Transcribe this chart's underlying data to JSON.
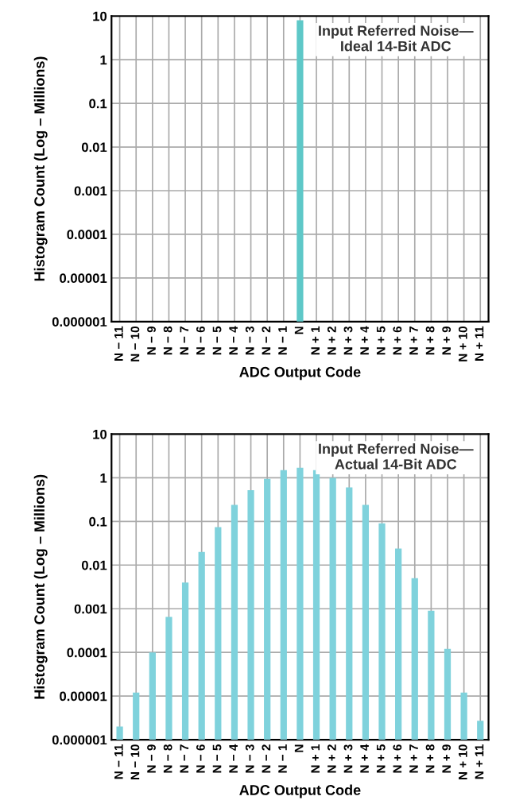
{
  "chart_data": [
    {
      "type": "bar",
      "title": "Input Referred Noise—\nIdeal 14-Bit ADC",
      "xlabel": "ADC Output Code",
      "ylabel": "Histogram Count (Log – Millions)",
      "categories": [
        "N − 11",
        "N − 10",
        "N − 9",
        "N − 8",
        "N − 7",
        "N − 6",
        "N − 5",
        "N − 4",
        "N − 3",
        "N − 2",
        "N − 1",
        "N",
        "N + 1",
        "N + 2",
        "N + 3",
        "N + 4",
        "N + 5",
        "N + 6",
        "N + 7",
        "N + 8",
        "N + 9",
        "N + 10",
        "N + 11"
      ],
      "values": [
        null,
        null,
        null,
        null,
        null,
        null,
        null,
        null,
        null,
        null,
        null,
        8,
        null,
        null,
        null,
        null,
        null,
        null,
        null,
        null,
        null,
        null,
        null
      ],
      "color": "#5ec8c8",
      "log": true,
      "ylim": [
        1e-06,
        10
      ],
      "yticks": [
        {
          "value": 1e-06,
          "label": "0.000001"
        },
        {
          "value": 1e-05,
          "label": "0.00001"
        },
        {
          "value": 0.0001,
          "label": "0.0001"
        },
        {
          "value": 0.001,
          "label": "0.001"
        },
        {
          "value": 0.01,
          "label": "0.01"
        },
        {
          "value": 0.1,
          "label": "0.1"
        },
        {
          "value": 1,
          "label": "1"
        },
        {
          "value": 10,
          "label": "10"
        }
      ],
      "grid": true
    },
    {
      "type": "bar",
      "title": "Input Referred Noise—\nActual 14-Bit ADC",
      "xlabel": "ADC Output Code",
      "ylabel": "Histogram Count (Log – Millions)",
      "categories": [
        "N − 11",
        "N − 10",
        "N − 9",
        "N − 8",
        "N − 7",
        "N − 6",
        "N − 5",
        "N − 4",
        "N − 3",
        "N − 2",
        "N − 1",
        "N",
        "N + 1",
        "N + 2",
        "N + 3",
        "N + 4",
        "N + 5",
        "N + 6",
        "N + 7",
        "N + 8",
        "N + 9",
        "N + 10",
        "N + 11"
      ],
      "values": [
        2e-06,
        1.2e-05,
        0.0001,
        0.00065,
        0.004,
        0.02,
        0.074,
        0.24,
        0.52,
        0.95,
        1.5,
        1.7,
        1.5,
        1.0,
        0.6,
        0.24,
        0.09,
        0.024,
        0.005,
        0.0009,
        0.00012,
        1.2e-05,
        2.7e-06
      ],
      "color": "#7fd2dc",
      "log": true,
      "ylim": [
        1e-06,
        10
      ],
      "yticks": [
        {
          "value": 1e-06,
          "label": "0.000001"
        },
        {
          "value": 1e-05,
          "label": "0.00001"
        },
        {
          "value": 0.0001,
          "label": "0.0001"
        },
        {
          "value": 0.001,
          "label": "0.001"
        },
        {
          "value": 0.01,
          "label": "0.01"
        },
        {
          "value": 0.1,
          "label": "0.1"
        },
        {
          "value": 1,
          "label": "1"
        },
        {
          "value": 10,
          "label": "10"
        }
      ],
      "grid": true
    }
  ]
}
